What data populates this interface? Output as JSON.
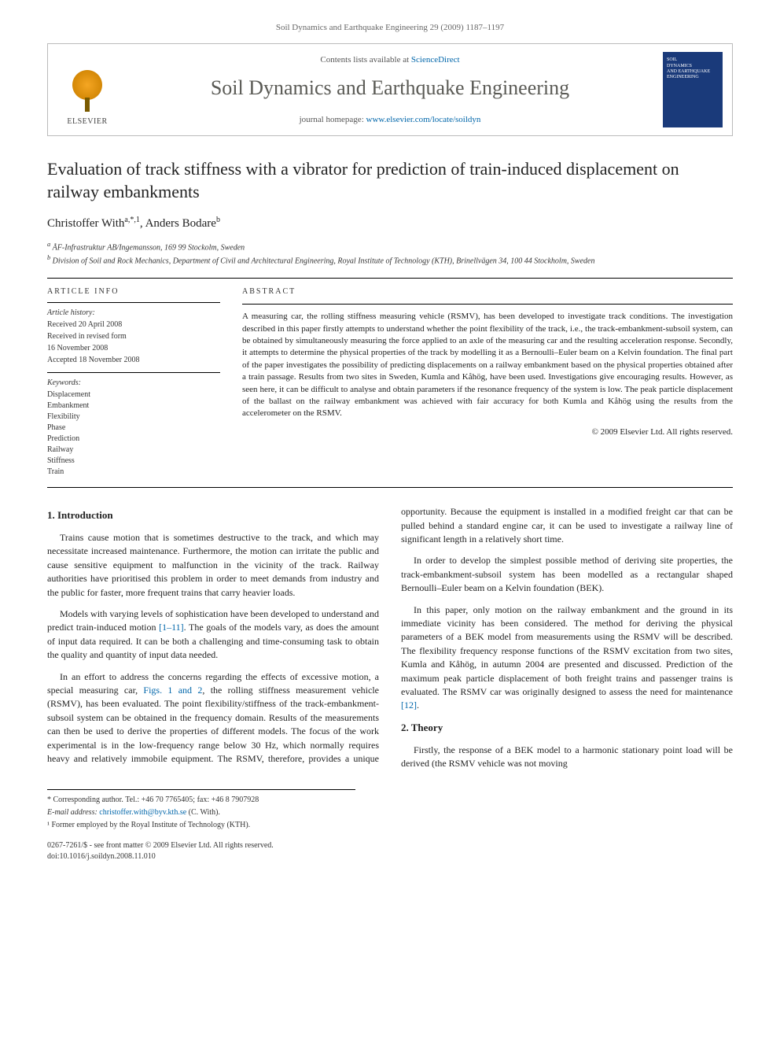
{
  "running_header": "Soil Dynamics and Earthquake Engineering 29 (2009) 1187–1197",
  "banner": {
    "publisher_label": "ELSEVIER",
    "contents_prefix": "Contents lists available at ",
    "contents_link": "ScienceDirect",
    "journal_name": "Soil Dynamics and Earthquake Engineering",
    "homepage_prefix": "journal homepage: ",
    "homepage_link": "www.elsevier.com/locate/soildyn",
    "cover_line1": "SOIL",
    "cover_line2": "DYNAMICS",
    "cover_line3": "AND EARTHQUAKE",
    "cover_line4": "ENGINEERING"
  },
  "title": "Evaluation of track stiffness with a vibrator for prediction of train-induced displacement on railway embankments",
  "authors_html": {
    "a1_name": "Christoffer With",
    "a1_sup": "a,*,1",
    "sep": ", ",
    "a2_name": "Anders Bodare",
    "a2_sup": "b"
  },
  "affiliations": {
    "a": "ÅF-Infrastruktur AB/Ingemansson, 169 99 Stockolm, Sweden",
    "b": "Division of Soil and Rock Mechanics, Department of Civil and Architectural Engineering, Royal Institute of Technology (KTH), Brinellvägen 34, 100 44 Stockholm, Sweden"
  },
  "article_info": {
    "heading": "ARTICLE INFO",
    "history_label": "Article history:",
    "received": "Received 20 April 2008",
    "revised_l1": "Received in revised form",
    "revised_l2": "16 November 2008",
    "accepted": "Accepted 18 November 2008",
    "keywords_label": "Keywords:",
    "keywords": [
      "Displacement",
      "Embankment",
      "Flexibility",
      "Phase",
      "Prediction",
      "Railway",
      "Stiffness",
      "Train"
    ]
  },
  "abstract": {
    "heading": "ABSTRACT",
    "text": "A measuring car, the rolling stiffness measuring vehicle (RSMV), has been developed to investigate track conditions. The investigation described in this paper firstly attempts to understand whether the point flexibility of the track, i.e., the track-embankment-subsoil system, can be obtained by simultaneously measuring the force applied to an axle of the measuring car and the resulting acceleration response. Secondly, it attempts to determine the physical properties of the track by modelling it as a Bernoulli–Euler beam on a Kelvin foundation. The final part of the paper investigates the possibility of predicting displacements on a railway embankment based on the physical properties obtained after a train passage. Results from two sites in Sweden, Kumla and Kåhög, have been used. Investigations give encouraging results. However, as seen here, it can be difficult to analyse and obtain parameters if the resonance frequency of the system is low. The peak particle displacement of the ballast on the railway embankment was achieved with fair accuracy for both Kumla and Kåhög using the results from the accelerometer on the RSMV.",
    "copyright": "© 2009 Elsevier Ltd. All rights reserved."
  },
  "sections": {
    "s1_heading": "1.  Introduction",
    "s1_p1": "Trains cause motion that is sometimes destructive to the track, and which may necessitate increased maintenance. Furthermore, the motion can irritate the public and cause sensitive equipment to malfunction in the vicinity of the track. Railway authorities have prioritised this problem in order to meet demands from industry and the public for faster, more frequent trains that carry heavier loads.",
    "s1_p2a": "Models with varying levels of sophistication have been developed to understand and predict train-induced motion ",
    "s1_p2_link": "[1–11]",
    "s1_p2b": ". The goals of the models vary, as does the amount of input data required. It can be both a challenging and time-consuming task to obtain the quality and quantity of input data needed.",
    "s1_p3a": "In an effort to address the concerns regarding the effects of excessive motion, a special measuring car, ",
    "s1_p3_link": "Figs. 1 and 2",
    "s1_p3b": ", the rolling stiffness measurement vehicle (RSMV), has been evaluated. The point flexibility/stiffness of the track-embankment-subsoil system can be obtained in the frequency domain. Results of the measurements can then be used to derive the properties of different models. The focus of the work experimental is in the ",
    "s1_p3c": "low-frequency range below 30 Hz, which normally requires heavy and relatively immobile equipment. The RSMV, therefore, provides a unique opportunity. Because the equipment is installed in a modified freight car that can be pulled behind a standard engine car, it can be used to investigate a railway line of significant length in a relatively short time.",
    "s1_p4": "In order to develop the simplest possible method of deriving site properties, the track-embankment-subsoil system has been modelled as a rectangular shaped Bernoulli–Euler beam on a Kelvin foundation (BEK).",
    "s1_p5a": "In this paper, only motion on the railway embankment and the ground in its immediate vicinity has been considered. The method for deriving the physical parameters of a BEK model from measurements using the RSMV will be described. The flexibility frequency response functions of the RSMV excitation from two sites, Kumla and Kåhög, in autumn 2004 are presented and discussed. Prediction of the maximum peak particle displacement of both freight trains and passenger trains is evaluated. The RSMV car was originally designed to assess the need for maintenance ",
    "s1_p5_link": "[12]",
    "s1_p5b": ".",
    "s2_heading": "2.  Theory",
    "s2_p1": "Firstly, the response of a BEK model to a harmonic stationary point load will be derived (the RSMV vehicle was not moving"
  },
  "footnotes": {
    "corr": "* Corresponding author. Tel.: +46 70 7765405; fax: +46 8 7907928",
    "email_label": "E-mail address: ",
    "email_link": "christoffer.with@byv.kth.se",
    "email_tail": " (C. With).",
    "fn1": "¹ Former employed by the Royal Institute of Technology (KTH).",
    "issn": "0267-7261/$ - see front matter © 2009 Elsevier Ltd. All rights reserved.",
    "doi": "doi:10.1016/j.soildyn.2008.11.010"
  },
  "colors": {
    "link": "#0066aa",
    "journal_name": "#5a5a55",
    "cover_bg": "#1a3a7a",
    "text": "#222222",
    "rule": "#000000"
  }
}
